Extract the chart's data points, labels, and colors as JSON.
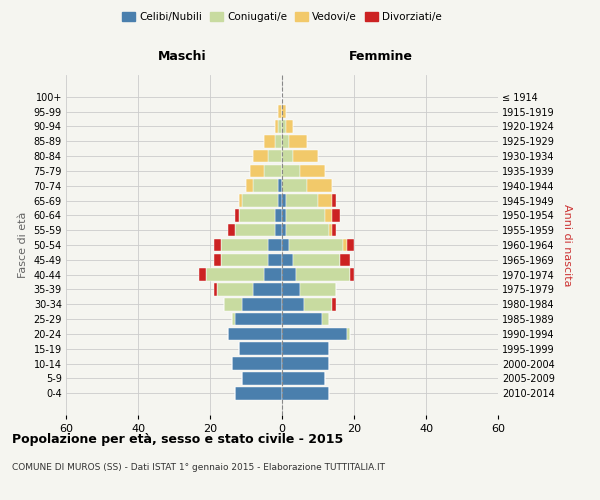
{
  "age_groups": [
    "0-4",
    "5-9",
    "10-14",
    "15-19",
    "20-24",
    "25-29",
    "30-34",
    "35-39",
    "40-44",
    "45-49",
    "50-54",
    "55-59",
    "60-64",
    "65-69",
    "70-74",
    "75-79",
    "80-84",
    "85-89",
    "90-94",
    "95-99",
    "100+"
  ],
  "birth_years": [
    "2010-2014",
    "2005-2009",
    "2000-2004",
    "1995-1999",
    "1990-1994",
    "1985-1989",
    "1980-1984",
    "1975-1979",
    "1970-1974",
    "1965-1969",
    "1960-1964",
    "1955-1959",
    "1950-1954",
    "1945-1949",
    "1940-1944",
    "1935-1939",
    "1930-1934",
    "1925-1929",
    "1920-1924",
    "1915-1919",
    "≤ 1914"
  ],
  "colors": {
    "celibi": "#4a7fad",
    "coniugati": "#c8dba0",
    "vedovi": "#f2c96a",
    "divorziati": "#cc2222"
  },
  "males": {
    "celibi": [
      13,
      11,
      14,
      12,
      15,
      13,
      11,
      8,
      5,
      4,
      4,
      2,
      2,
      1,
      1,
      0,
      0,
      0,
      0,
      0,
      0
    ],
    "coniugati": [
      0,
      0,
      0,
      0,
      0,
      1,
      5,
      10,
      16,
      13,
      13,
      11,
      10,
      10,
      7,
      5,
      4,
      2,
      1,
      0,
      0
    ],
    "vedovi": [
      0,
      0,
      0,
      0,
      0,
      0,
      0,
      0,
      0,
      0,
      0,
      0,
      0,
      1,
      2,
      4,
      4,
      3,
      1,
      1,
      0
    ],
    "divorziati": [
      0,
      0,
      0,
      0,
      0,
      0,
      0,
      1,
      2,
      2,
      2,
      2,
      1,
      0,
      0,
      0,
      0,
      0,
      0,
      0,
      0
    ]
  },
  "females": {
    "nubili": [
      13,
      12,
      13,
      13,
      18,
      11,
      6,
      5,
      4,
      3,
      2,
      1,
      1,
      1,
      0,
      0,
      0,
      0,
      0,
      0,
      0
    ],
    "coniugate": [
      0,
      0,
      0,
      0,
      1,
      2,
      8,
      10,
      15,
      13,
      15,
      12,
      11,
      9,
      7,
      5,
      3,
      2,
      1,
      0,
      0
    ],
    "vedove": [
      0,
      0,
      0,
      0,
      0,
      0,
      0,
      0,
      0,
      0,
      1,
      1,
      2,
      4,
      7,
      7,
      7,
      5,
      2,
      1,
      0
    ],
    "divorziate": [
      0,
      0,
      0,
      0,
      0,
      0,
      1,
      0,
      1,
      3,
      2,
      1,
      2,
      1,
      0,
      0,
      0,
      0,
      0,
      0,
      0
    ]
  },
  "xlim": [
    -60,
    60
  ],
  "xticks": [
    -60,
    -40,
    -20,
    0,
    20,
    40,
    60
  ],
  "xticklabels": [
    "60",
    "40",
    "20",
    "0",
    "20",
    "40",
    "60"
  ],
  "title": "Popolazione per età, sesso e stato civile - 2015",
  "subtitle": "COMUNE DI MUROS (SS) - Dati ISTAT 1° gennaio 2015 - Elaborazione TUTTITALIA.IT",
  "ylabel_left": "Fasce di età",
  "ylabel_right": "Anni di nascita",
  "label_maschi": "Maschi",
  "label_femmine": "Femmine",
  "legend_labels": [
    "Celibi/Nubili",
    "Coniugati/e",
    "Vedovi/e",
    "Divorziati/e"
  ],
  "bar_height": 0.85,
  "bg_color": "#f5f5f0",
  "plot_bg": "#f5f5f0"
}
